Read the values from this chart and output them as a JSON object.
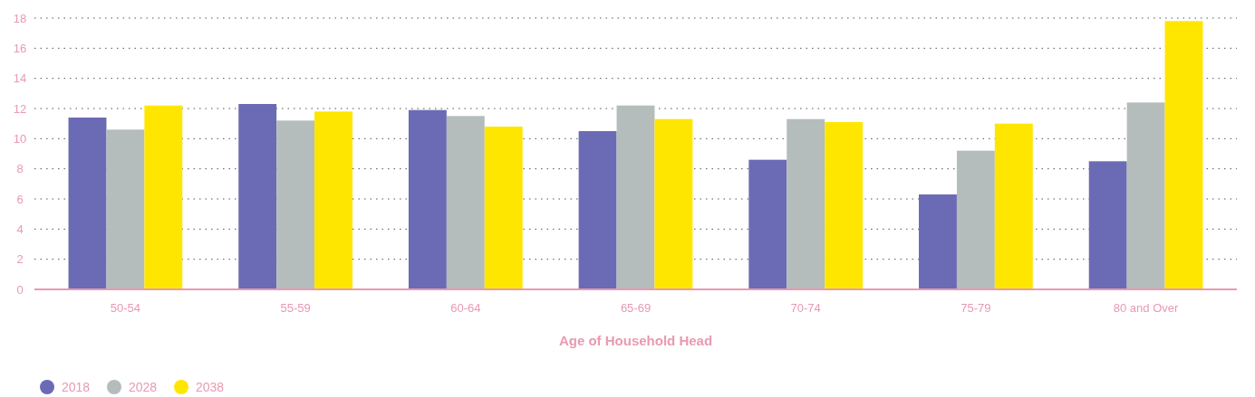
{
  "chart_data": {
    "type": "bar",
    "xlabel": "Age of Household Head",
    "categories": [
      "50-54",
      "55-59",
      "60-64",
      "65-69",
      "70-74",
      "75-79",
      "80 and Over"
    ],
    "series": [
      {
        "name": "2018",
        "color": "#6b6bb5",
        "values": [
          11.4,
          12.3,
          11.9,
          10.5,
          8.6,
          6.3,
          8.5
        ]
      },
      {
        "name": "2028",
        "color": "#b4bcbc",
        "values": [
          10.6,
          11.2,
          11.5,
          12.2,
          11.3,
          9.2,
          12.4
        ]
      },
      {
        "name": "2038",
        "color": "#ffe600",
        "values": [
          12.2,
          11.8,
          10.8,
          11.3,
          11.1,
          11.0,
          17.8
        ]
      }
    ],
    "ylim": [
      0,
      18
    ],
    "yticks": [
      0,
      2,
      4,
      6,
      8,
      10,
      12,
      14,
      16,
      18
    ],
    "grid": "y",
    "legend": "bottom left"
  }
}
